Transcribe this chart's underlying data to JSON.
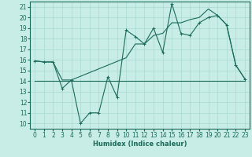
{
  "xlabel": "Humidex (Indice chaleur)",
  "xlim": [
    -0.5,
    23.5
  ],
  "ylim": [
    9.5,
    21.5
  ],
  "yticks": [
    10,
    11,
    12,
    13,
    14,
    15,
    16,
    17,
    18,
    19,
    20,
    21
  ],
  "xticks": [
    0,
    1,
    2,
    3,
    4,
    5,
    6,
    7,
    8,
    9,
    10,
    11,
    12,
    13,
    14,
    15,
    16,
    17,
    18,
    19,
    20,
    21,
    22,
    23
  ],
  "bg_color": "#c8ece6",
  "grid_color": "#a8d8d0",
  "line_color": "#1a6b5a",
  "line1_x": [
    0,
    1,
    2,
    3,
    4,
    5,
    6,
    7,
    8,
    9,
    10,
    11,
    12,
    13,
    14,
    15,
    16,
    17,
    18,
    19,
    20,
    21,
    22,
    23
  ],
  "line1_y": [
    15.9,
    15.8,
    15.8,
    13.3,
    14.1,
    10.0,
    11.0,
    11.0,
    14.4,
    12.5,
    18.8,
    18.2,
    17.5,
    19.0,
    16.7,
    21.3,
    18.5,
    18.3,
    19.5,
    20.0,
    20.2,
    19.3,
    15.5,
    14.2
  ],
  "line2_x": [
    0,
    23
  ],
  "line2_y": [
    14.0,
    14.0
  ],
  "line3_x": [
    0,
    1,
    2,
    3,
    4,
    10,
    11,
    12,
    13,
    14,
    15,
    16,
    17,
    18,
    19,
    20,
    21,
    22,
    23
  ],
  "line3_y": [
    15.9,
    15.8,
    15.8,
    14.1,
    14.1,
    16.2,
    17.5,
    17.5,
    18.3,
    18.5,
    19.5,
    19.5,
    19.8,
    20.0,
    20.8,
    20.2,
    19.3,
    15.5,
    14.2
  ],
  "font_size_label": 6,
  "font_size_tick": 5.5
}
